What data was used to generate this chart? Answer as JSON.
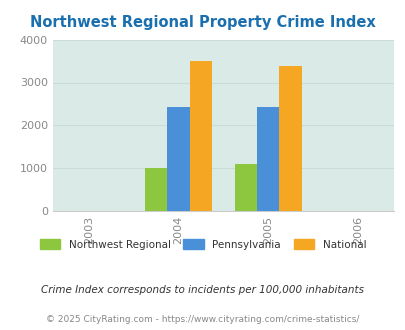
{
  "title": "Northwest Regional Property Crime Index",
  "title_color": "#1a6faf",
  "years": [
    2003,
    2004,
    2005,
    2006
  ],
  "bar_years": [
    2004,
    2005
  ],
  "northwest_regional": [
    1000,
    1100
  ],
  "pennsylvania": [
    2440,
    2440
  ],
  "national": [
    3510,
    3390
  ],
  "bar_colors": {
    "northwest": "#8dc63f",
    "pennsylvania": "#4a90d9",
    "national": "#f5a623"
  },
  "ylim": [
    0,
    4000
  ],
  "yticks": [
    0,
    1000,
    2000,
    3000,
    4000
  ],
  "plot_bg_color": "#daeae6",
  "fig_bg_color": "#ffffff",
  "legend_labels": [
    "Northwest Regional",
    "Pennsylvania",
    "National"
  ],
  "footnote1": "Crime Index corresponds to incidents per 100,000 inhabitants",
  "footnote2": "© 2025 CityRating.com - https://www.cityrating.com/crime-statistics/",
  "bar_width": 0.25
}
